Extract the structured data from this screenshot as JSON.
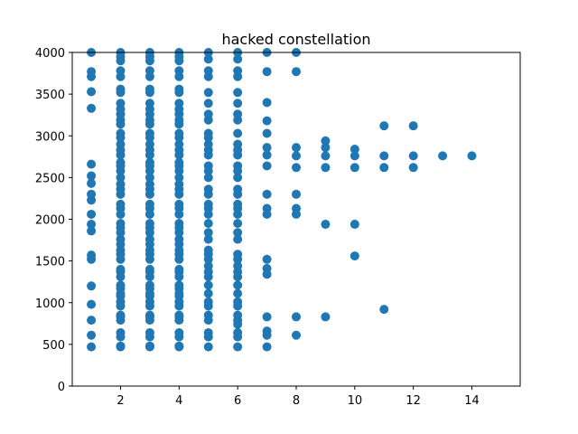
{
  "chart_data": {
    "type": "scatter",
    "title": "hacked constellation",
    "xlabel": "",
    "ylabel": "",
    "xlim": [
      0.35,
      15.65
    ],
    "ylim": [
      0,
      4000
    ],
    "xticks": [
      2,
      4,
      6,
      8,
      10,
      12,
      14
    ],
    "yticks": [
      0,
      500,
      1000,
      1500,
      2000,
      2500,
      3000,
      3500,
      4000
    ],
    "grid": false,
    "legend": "none",
    "marker_color": "#1f77b4",
    "points": [
      [
        1,
        470
      ],
      [
        1,
        610
      ],
      [
        1,
        790
      ],
      [
        1,
        980
      ],
      [
        1,
        1200
      ],
      [
        1,
        1520
      ],
      [
        1,
        1570
      ],
      [
        1,
        1860
      ],
      [
        1,
        1940
      ],
      [
        1,
        2060
      ],
      [
        1,
        2230
      ],
      [
        1,
        2300
      ],
      [
        1,
        2430
      ],
      [
        1,
        2520
      ],
      [
        1,
        2660
      ],
      [
        1,
        3330
      ],
      [
        1,
        3530
      ],
      [
        1,
        3710
      ],
      [
        1,
        3770
      ],
      [
        1,
        4000
      ],
      [
        2,
        470
      ],
      [
        2,
        480
      ],
      [
        2,
        590
      ],
      [
        2,
        640
      ],
      [
        2,
        790
      ],
      [
        2,
        830
      ],
      [
        2,
        850
      ],
      [
        2,
        960
      ],
      [
        2,
        1010
      ],
      [
        2,
        1080
      ],
      [
        2,
        1110
      ],
      [
        2,
        1170
      ],
      [
        2,
        1210
      ],
      [
        2,
        1310
      ],
      [
        2,
        1370
      ],
      [
        2,
        1400
      ],
      [
        2,
        1520
      ],
      [
        2,
        1580
      ],
      [
        2,
        1630
      ],
      [
        2,
        1700
      ],
      [
        2,
        1760
      ],
      [
        2,
        1840
      ],
      [
        2,
        1900
      ],
      [
        2,
        1950
      ],
      [
        2,
        2060
      ],
      [
        2,
        2130
      ],
      [
        2,
        2180
      ],
      [
        2,
        2300
      ],
      [
        2,
        2360
      ],
      [
        2,
        2420
      ],
      [
        2,
        2500
      ],
      [
        2,
        2580
      ],
      [
        2,
        2640
      ],
      [
        2,
        2680
      ],
      [
        2,
        2770
      ],
      [
        2,
        2830
      ],
      [
        2,
        2900
      ],
      [
        2,
        2980
      ],
      [
        2,
        3030
      ],
      [
        2,
        3140
      ],
      [
        2,
        3190
      ],
      [
        2,
        3260
      ],
      [
        2,
        3320
      ],
      [
        2,
        3390
      ],
      [
        2,
        3520
      ],
      [
        2,
        3560
      ],
      [
        2,
        3710
      ],
      [
        2,
        3780
      ],
      [
        2,
        3900
      ],
      [
        2,
        3950
      ],
      [
        2,
        4000
      ],
      [
        3,
        470
      ],
      [
        3,
        480
      ],
      [
        3,
        590
      ],
      [
        3,
        640
      ],
      [
        3,
        790
      ],
      [
        3,
        830
      ],
      [
        3,
        850
      ],
      [
        3,
        960
      ],
      [
        3,
        1010
      ],
      [
        3,
        1080
      ],
      [
        3,
        1110
      ],
      [
        3,
        1170
      ],
      [
        3,
        1210
      ],
      [
        3,
        1310
      ],
      [
        3,
        1370
      ],
      [
        3,
        1400
      ],
      [
        3,
        1520
      ],
      [
        3,
        1580
      ],
      [
        3,
        1630
      ],
      [
        3,
        1700
      ],
      [
        3,
        1760
      ],
      [
        3,
        1840
      ],
      [
        3,
        1900
      ],
      [
        3,
        1950
      ],
      [
        3,
        2060
      ],
      [
        3,
        2130
      ],
      [
        3,
        2180
      ],
      [
        3,
        2300
      ],
      [
        3,
        2360
      ],
      [
        3,
        2420
      ],
      [
        3,
        2500
      ],
      [
        3,
        2580
      ],
      [
        3,
        2640
      ],
      [
        3,
        2680
      ],
      [
        3,
        2770
      ],
      [
        3,
        2830
      ],
      [
        3,
        2900
      ],
      [
        3,
        2980
      ],
      [
        3,
        3030
      ],
      [
        3,
        3140
      ],
      [
        3,
        3190
      ],
      [
        3,
        3260
      ],
      [
        3,
        3320
      ],
      [
        3,
        3390
      ],
      [
        3,
        3520
      ],
      [
        3,
        3560
      ],
      [
        3,
        3710
      ],
      [
        3,
        3780
      ],
      [
        3,
        3900
      ],
      [
        3,
        3950
      ],
      [
        3,
        4000
      ],
      [
        4,
        470
      ],
      [
        4,
        480
      ],
      [
        4,
        590
      ],
      [
        4,
        640
      ],
      [
        4,
        790
      ],
      [
        4,
        830
      ],
      [
        4,
        850
      ],
      [
        4,
        960
      ],
      [
        4,
        1010
      ],
      [
        4,
        1080
      ],
      [
        4,
        1110
      ],
      [
        4,
        1170
      ],
      [
        4,
        1210
      ],
      [
        4,
        1310
      ],
      [
        4,
        1370
      ],
      [
        4,
        1400
      ],
      [
        4,
        1520
      ],
      [
        4,
        1580
      ],
      [
        4,
        1630
      ],
      [
        4,
        1700
      ],
      [
        4,
        1760
      ],
      [
        4,
        1840
      ],
      [
        4,
        1900
      ],
      [
        4,
        1950
      ],
      [
        4,
        2060
      ],
      [
        4,
        2130
      ],
      [
        4,
        2180
      ],
      [
        4,
        2300
      ],
      [
        4,
        2360
      ],
      [
        4,
        2420
      ],
      [
        4,
        2500
      ],
      [
        4,
        2580
      ],
      [
        4,
        2640
      ],
      [
        4,
        2680
      ],
      [
        4,
        2770
      ],
      [
        4,
        2830
      ],
      [
        4,
        2900
      ],
      [
        4,
        2980
      ],
      [
        4,
        3030
      ],
      [
        4,
        3140
      ],
      [
        4,
        3190
      ],
      [
        4,
        3260
      ],
      [
        4,
        3320
      ],
      [
        4,
        3390
      ],
      [
        4,
        3520
      ],
      [
        4,
        3560
      ],
      [
        4,
        3710
      ],
      [
        4,
        3780
      ],
      [
        4,
        3900
      ],
      [
        4,
        3950
      ],
      [
        4,
        4000
      ],
      [
        5,
        470
      ],
      [
        5,
        590
      ],
      [
        5,
        640
      ],
      [
        5,
        790
      ],
      [
        5,
        850
      ],
      [
        5,
        960
      ],
      [
        5,
        1010
      ],
      [
        5,
        1110
      ],
      [
        5,
        1210
      ],
      [
        5,
        1310
      ],
      [
        5,
        1370
      ],
      [
        5,
        1440
      ],
      [
        5,
        1520
      ],
      [
        5,
        1580
      ],
      [
        5,
        1630
      ],
      [
        5,
        1760
      ],
      [
        5,
        1840
      ],
      [
        5,
        1950
      ],
      [
        5,
        2060
      ],
      [
        5,
        2130
      ],
      [
        5,
        2180
      ],
      [
        5,
        2300
      ],
      [
        5,
        2360
      ],
      [
        5,
        2500
      ],
      [
        5,
        2580
      ],
      [
        5,
        2640
      ],
      [
        5,
        2770
      ],
      [
        5,
        2830
      ],
      [
        5,
        2900
      ],
      [
        5,
        2980
      ],
      [
        5,
        3030
      ],
      [
        5,
        3190
      ],
      [
        5,
        3260
      ],
      [
        5,
        3390
      ],
      [
        5,
        3520
      ],
      [
        5,
        3710
      ],
      [
        5,
        3780
      ],
      [
        5,
        3920
      ],
      [
        5,
        4000
      ],
      [
        6,
        470
      ],
      [
        6,
        590
      ],
      [
        6,
        640
      ],
      [
        6,
        740
      ],
      [
        6,
        790
      ],
      [
        6,
        850
      ],
      [
        6,
        960
      ],
      [
        6,
        1010
      ],
      [
        6,
        1110
      ],
      [
        6,
        1210
      ],
      [
        6,
        1310
      ],
      [
        6,
        1370
      ],
      [
        6,
        1440
      ],
      [
        6,
        1520
      ],
      [
        6,
        1580
      ],
      [
        6,
        1760
      ],
      [
        6,
        1840
      ],
      [
        6,
        1950
      ],
      [
        6,
        2060
      ],
      [
        6,
        2130
      ],
      [
        6,
        2180
      ],
      [
        6,
        2300
      ],
      [
        6,
        2360
      ],
      [
        6,
        2500
      ],
      [
        6,
        2580
      ],
      [
        6,
        2640
      ],
      [
        6,
        2770
      ],
      [
        6,
        2830
      ],
      [
        6,
        2900
      ],
      [
        6,
        3030
      ],
      [
        6,
        3190
      ],
      [
        6,
        3260
      ],
      [
        6,
        3390
      ],
      [
        6,
        3520
      ],
      [
        6,
        3710
      ],
      [
        6,
        3780
      ],
      [
        6,
        3920
      ],
      [
        6,
        4000
      ],
      [
        7,
        470
      ],
      [
        7,
        610
      ],
      [
        7,
        660
      ],
      [
        7,
        830
      ],
      [
        7,
        1340
      ],
      [
        7,
        1410
      ],
      [
        7,
        1520
      ],
      [
        7,
        2060
      ],
      [
        7,
        2130
      ],
      [
        7,
        2300
      ],
      [
        7,
        2640
      ],
      [
        7,
        2770
      ],
      [
        7,
        2860
      ],
      [
        7,
        3030
      ],
      [
        7,
        3180
      ],
      [
        7,
        3400
      ],
      [
        7,
        3770
      ],
      [
        7,
        4000
      ],
      [
        8,
        610
      ],
      [
        8,
        830
      ],
      [
        8,
        2060
      ],
      [
        8,
        2130
      ],
      [
        8,
        2300
      ],
      [
        8,
        2620
      ],
      [
        8,
        2760
      ],
      [
        8,
        2860
      ],
      [
        8,
        3770
      ],
      [
        8,
        4000
      ],
      [
        9,
        830
      ],
      [
        9,
        1940
      ],
      [
        9,
        2620
      ],
      [
        9,
        2760
      ],
      [
        9,
        2860
      ],
      [
        9,
        2940
      ],
      [
        10,
        1560
      ],
      [
        10,
        1940
      ],
      [
        10,
        2620
      ],
      [
        10,
        2760
      ],
      [
        10,
        2840
      ],
      [
        11,
        920
      ],
      [
        11,
        2620
      ],
      [
        11,
        2760
      ],
      [
        11,
        3120
      ],
      [
        12,
        2620
      ],
      [
        12,
        2760
      ],
      [
        12,
        3120
      ],
      [
        13,
        2760
      ],
      [
        14,
        2760
      ]
    ]
  }
}
